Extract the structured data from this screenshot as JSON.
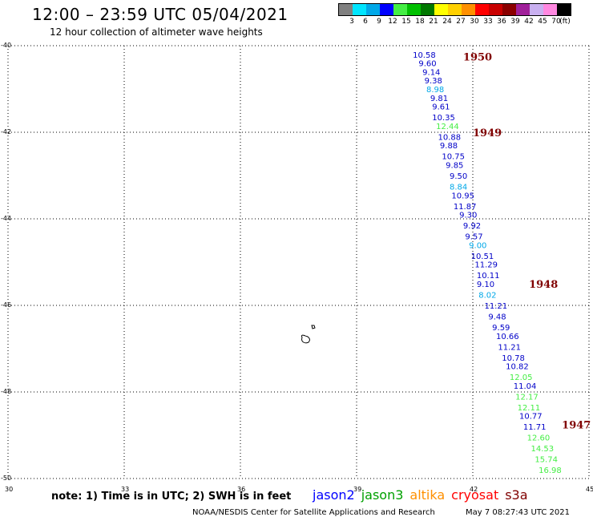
{
  "header": {
    "title": "12:00 – 23:59 UTC 05/04/2021",
    "subtitle": "12 hour collection of altimeter wave heights"
  },
  "legend": {
    "unit": "(ft)",
    "bins": [
      {
        "label": "3",
        "color": "#808080"
      },
      {
        "label": "6",
        "color": "#00e5ff"
      },
      {
        "label": "9",
        "color": "#00a8e8"
      },
      {
        "label": "12",
        "color": "#0000ff"
      },
      {
        "label": "15",
        "color": "#44ee44"
      },
      {
        "label": "18",
        "color": "#00c000"
      },
      {
        "label": "21",
        "color": "#007800"
      },
      {
        "label": "24",
        "color": "#ffff00"
      },
      {
        "label": "27",
        "color": "#ffd000"
      },
      {
        "label": "30",
        "color": "#ff9000"
      },
      {
        "label": "33",
        "color": "#ff0000"
      },
      {
        "label": "36",
        "color": "#c80000"
      },
      {
        "label": "39",
        "color": "#8b0000"
      },
      {
        "label": "42",
        "color": "#a0209a"
      },
      {
        "label": "45",
        "color": "#c9b0f0"
      },
      {
        "label": "70",
        "color": "#ff88e0"
      },
      {
        "label": "",
        "color": "#000000"
      }
    ]
  },
  "map": {
    "lon_range": [
      30,
      45
    ],
    "lat_range": [
      -50,
      -40
    ],
    "lon_ticks": [
      "30",
      "33",
      "36",
      "39",
      "42",
      "45"
    ],
    "lat_ticks": [
      "-40",
      "-42",
      "-44",
      "-46",
      "-48",
      "-50"
    ],
    "grid": "dotted",
    "wave_colors": {
      "blue": "#0000c8",
      "cyan": "#00a8e8",
      "green": "#44ee44",
      "time": "#800000"
    },
    "observations": [
      {
        "lon": 40.45,
        "lat": -40.2,
        "value": "10.58",
        "color": "blue"
      },
      {
        "lon": 40.6,
        "lat": -40.4,
        "value": "9.60",
        "color": "blue"
      },
      {
        "lon": 40.7,
        "lat": -40.6,
        "value": "9.14",
        "color": "blue"
      },
      {
        "lon": 40.75,
        "lat": -40.8,
        "value": "9.38",
        "color": "blue"
      },
      {
        "lon": 40.8,
        "lat": -41.0,
        "value": "8.98",
        "color": "cyan"
      },
      {
        "lon": 40.9,
        "lat": -41.2,
        "value": "9.81",
        "color": "blue"
      },
      {
        "lon": 40.95,
        "lat": -41.4,
        "value": "9.61",
        "color": "blue"
      },
      {
        "lon": 40.95,
        "lat": -41.65,
        "value": "10.35",
        "color": "blue"
      },
      {
        "lon": 41.05,
        "lat": -41.85,
        "value": "12.44",
        "color": "green"
      },
      {
        "lon": 41.1,
        "lat": -42.1,
        "value": "10.88",
        "color": "blue"
      },
      {
        "lon": 41.15,
        "lat": -42.3,
        "value": "9.88",
        "color": "blue"
      },
      {
        "lon": 41.2,
        "lat": -42.55,
        "value": "10.75",
        "color": "blue"
      },
      {
        "lon": 41.3,
        "lat": -42.75,
        "value": "9.85",
        "color": "blue"
      },
      {
        "lon": 41.4,
        "lat": -43.0,
        "value": "9.50",
        "color": "blue"
      },
      {
        "lon": 41.4,
        "lat": -43.25,
        "value": "8.84",
        "color": "cyan"
      },
      {
        "lon": 41.45,
        "lat": -43.45,
        "value": "10.95",
        "color": "blue"
      },
      {
        "lon": 41.5,
        "lat": -43.7,
        "value": "11.87",
        "color": "blue"
      },
      {
        "lon": 41.65,
        "lat": -43.9,
        "value": "9.30",
        "color": "blue"
      },
      {
        "lon": 41.75,
        "lat": -44.15,
        "value": "9.92",
        "color": "blue"
      },
      {
        "lon": 41.8,
        "lat": -44.4,
        "value": "9.57",
        "color": "blue"
      },
      {
        "lon": 41.9,
        "lat": -44.6,
        "value": "9.00",
        "color": "cyan"
      },
      {
        "lon": 41.95,
        "lat": -44.85,
        "value": "10.51",
        "color": "blue"
      },
      {
        "lon": 42.05,
        "lat": -45.05,
        "value": "11.29",
        "color": "blue"
      },
      {
        "lon": 42.1,
        "lat": -45.3,
        "value": "10.11",
        "color": "blue"
      },
      {
        "lon": 42.1,
        "lat": -45.5,
        "value": "9.10",
        "color": "blue"
      },
      {
        "lon": 42.15,
        "lat": -45.75,
        "value": "8.02",
        "color": "cyan"
      },
      {
        "lon": 42.3,
        "lat": -46.0,
        "value": "11.21",
        "color": "blue"
      },
      {
        "lon": 42.4,
        "lat": -46.25,
        "value": "9.48",
        "color": "blue"
      },
      {
        "lon": 42.5,
        "lat": -46.5,
        "value": "9.59",
        "color": "blue"
      },
      {
        "lon": 42.6,
        "lat": -46.7,
        "value": "10.66",
        "color": "blue"
      },
      {
        "lon": 42.65,
        "lat": -46.95,
        "value": "11.21",
        "color": "blue"
      },
      {
        "lon": 42.75,
        "lat": -47.2,
        "value": "10.78",
        "color": "blue"
      },
      {
        "lon": 42.85,
        "lat": -47.4,
        "value": "10.82",
        "color": "blue"
      },
      {
        "lon": 42.95,
        "lat": -47.65,
        "value": "12.05",
        "color": "green"
      },
      {
        "lon": 43.05,
        "lat": -47.85,
        "value": "11.04",
        "color": "blue"
      },
      {
        "lon": 43.1,
        "lat": -48.1,
        "value": "12.17",
        "color": "green"
      },
      {
        "lon": 43.15,
        "lat": -48.35,
        "value": "12.11",
        "color": "green"
      },
      {
        "lon": 43.2,
        "lat": -48.55,
        "value": "10.77",
        "color": "blue"
      },
      {
        "lon": 43.3,
        "lat": -48.8,
        "value": "11.71",
        "color": "blue"
      },
      {
        "lon": 43.4,
        "lat": -49.05,
        "value": "12.60",
        "color": "green"
      },
      {
        "lon": 43.5,
        "lat": -49.3,
        "value": "14.53",
        "color": "green"
      },
      {
        "lon": 43.6,
        "lat": -49.55,
        "value": "15.74",
        "color": "green"
      },
      {
        "lon": 43.7,
        "lat": -49.8,
        "value": "16.98",
        "color": "green"
      }
    ],
    "time_labels": [
      {
        "lon": 41.75,
        "lat": -40.25,
        "text": "1950"
      },
      {
        "lon": 42.0,
        "lat": -42.0,
        "text": "1949"
      },
      {
        "lon": 43.45,
        "lat": -45.5,
        "text": "1948"
      },
      {
        "lon": 44.3,
        "lat": -48.75,
        "text": "1947"
      }
    ]
  },
  "footer": {
    "note": "note:  1) Time is in UTC;  2) SWH is in feet",
    "missions": [
      {
        "label": "jason2",
        "color": "#0000ff"
      },
      {
        "label": "jason3",
        "color": "#00a000"
      },
      {
        "label": "altika",
        "color": "#ff9000"
      },
      {
        "label": "cryosat",
        "color": "#ff0000"
      },
      {
        "label": "s3a",
        "color": "#800000"
      }
    ],
    "credit": "NOAA/NESDIS Center for Satellite Applications and Research",
    "timestamp": "May  7 08:27:43 UTC 2021"
  }
}
